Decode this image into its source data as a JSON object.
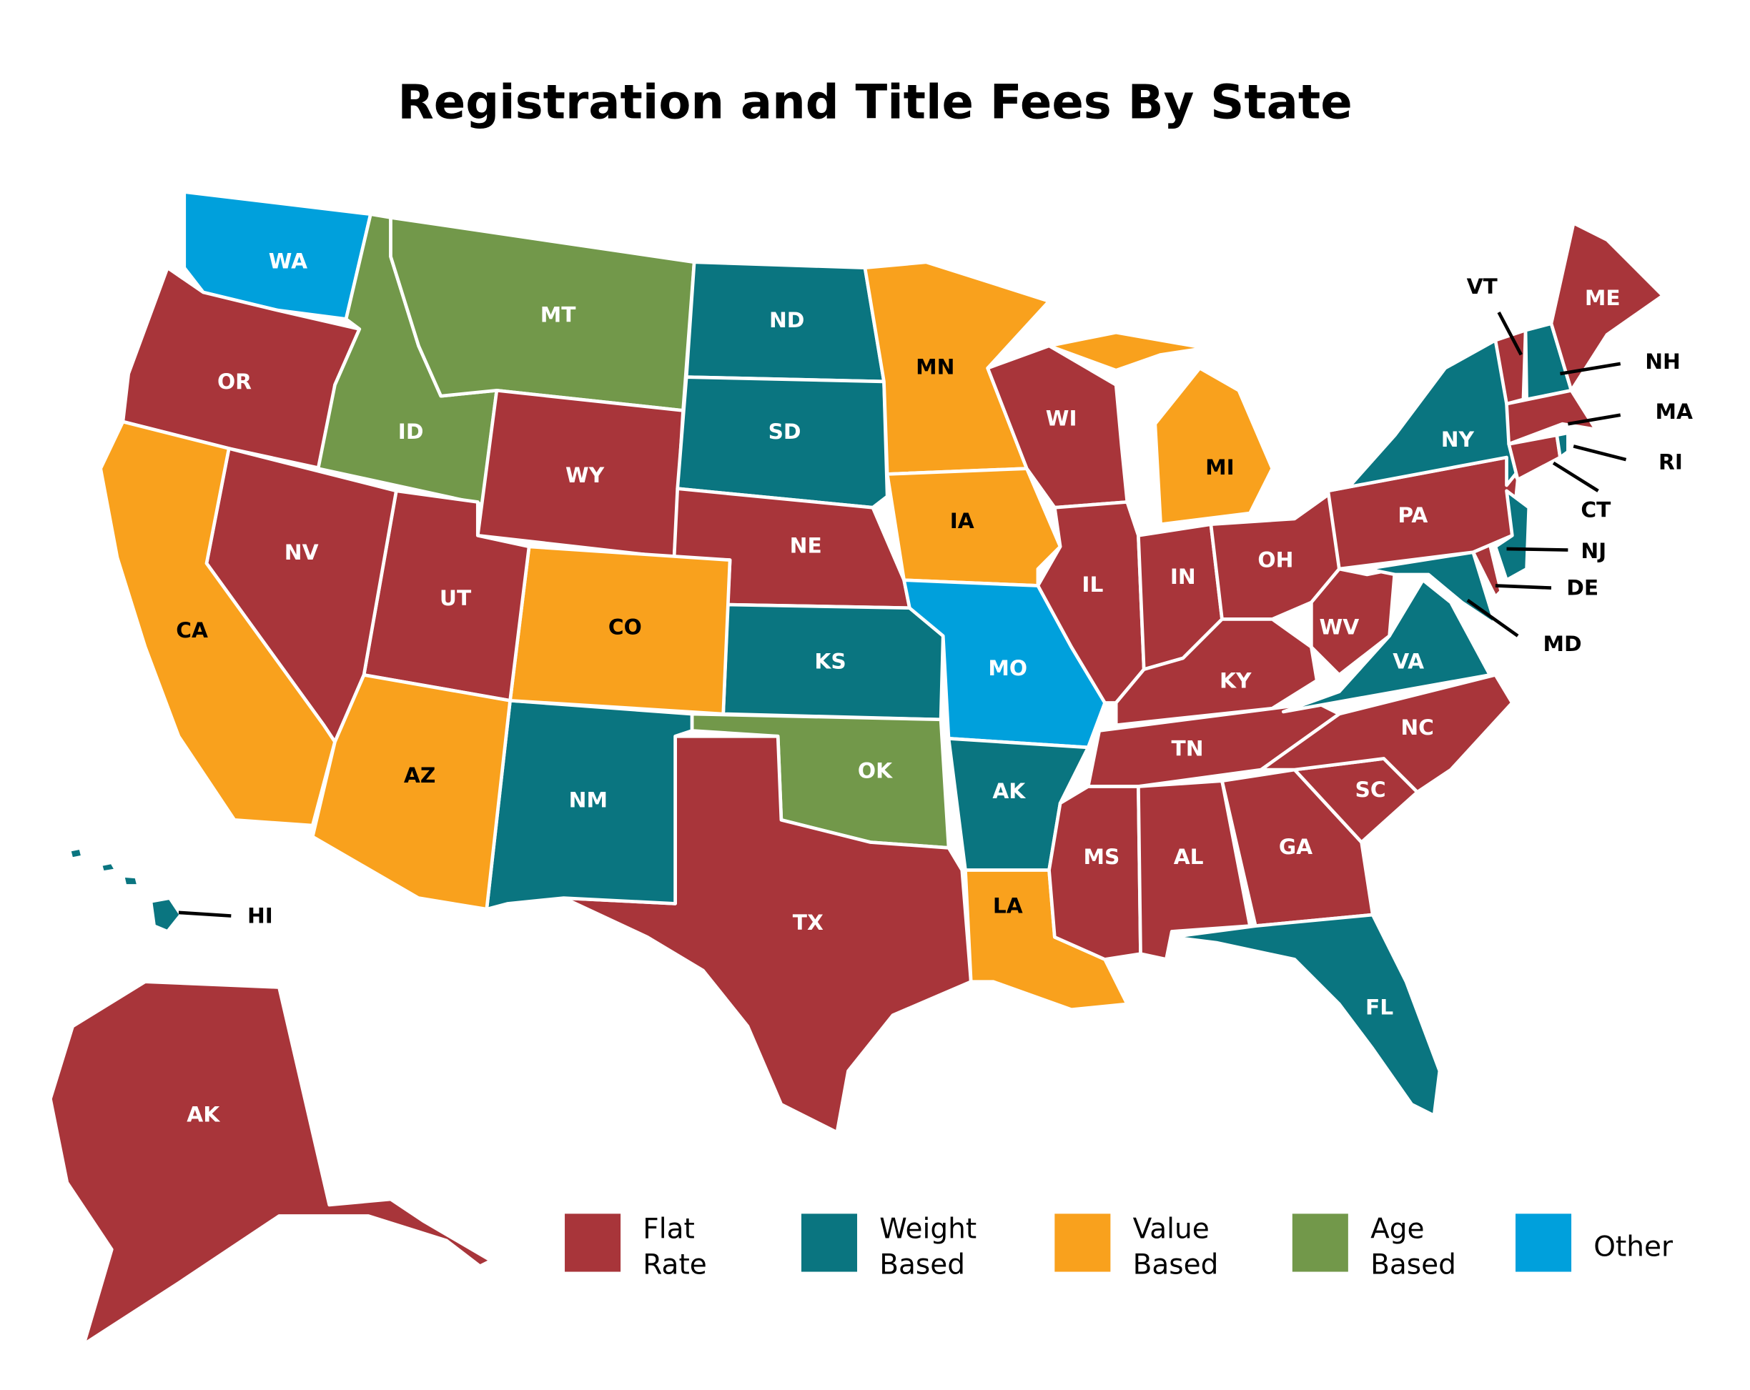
{
  "title": "Registration and Title Fees By State",
  "colors": {
    "flat": "#a8353a",
    "weight": "#0a7580",
    "value": "#f9a11d",
    "age": "#72984a",
    "other": "#00a0dc"
  },
  "legend": [
    {
      "category": "flat",
      "line1": "Flat",
      "line2": "Rate"
    },
    {
      "category": "weight",
      "line1": "Weight",
      "line2": "Based"
    },
    {
      "category": "value",
      "line1": "Value",
      "line2": "Based"
    },
    {
      "category": "age",
      "line1": "Age",
      "line2": "Based"
    },
    {
      "category": "other",
      "line1": "Other",
      "line2": ""
    }
  ],
  "states": [
    {
      "label": "WA",
      "category": "other"
    },
    {
      "label": "OR",
      "category": "flat"
    },
    {
      "label": "ID",
      "category": "age"
    },
    {
      "label": "MT",
      "category": "age"
    },
    {
      "label": "WY",
      "category": "flat"
    },
    {
      "label": "ND",
      "category": "weight"
    },
    {
      "label": "SD",
      "category": "weight"
    },
    {
      "label": "NE",
      "category": "flat"
    },
    {
      "label": "KS",
      "category": "weight"
    },
    {
      "label": "OK",
      "category": "age"
    },
    {
      "label": "TX",
      "category": "flat"
    },
    {
      "label": "NM",
      "category": "weight"
    },
    {
      "label": "CO",
      "category": "value"
    },
    {
      "label": "UT",
      "category": "flat"
    },
    {
      "label": "NV",
      "category": "flat"
    },
    {
      "label": "CA",
      "category": "value"
    },
    {
      "label": "AZ",
      "category": "value"
    },
    {
      "label": "MN",
      "category": "value"
    },
    {
      "label": "IA",
      "category": "value"
    },
    {
      "label": "MO",
      "category": "other"
    },
    {
      "label": "AK",
      "category": "weight"
    },
    {
      "label": "LA",
      "category": "value"
    },
    {
      "label": "WI",
      "category": "flat"
    },
    {
      "label": "IL",
      "category": "flat"
    },
    {
      "label": "MI",
      "category": "value"
    },
    {
      "label": "IN",
      "category": "flat"
    },
    {
      "label": "OH",
      "category": "flat"
    },
    {
      "label": "KY",
      "category": "flat"
    },
    {
      "label": "TN",
      "category": "flat"
    },
    {
      "label": "MS",
      "category": "flat"
    },
    {
      "label": "AL",
      "category": "flat"
    },
    {
      "label": "GA",
      "category": "flat"
    },
    {
      "label": "FL",
      "category": "weight"
    },
    {
      "label": "SC",
      "category": "flat"
    },
    {
      "label": "NC",
      "category": "flat"
    },
    {
      "label": "VA",
      "category": "weight"
    },
    {
      "label": "WV",
      "category": "flat"
    },
    {
      "label": "MD",
      "category": "weight"
    },
    {
      "label": "DE",
      "category": "flat"
    },
    {
      "label": "PA",
      "category": "flat"
    },
    {
      "label": "NJ",
      "category": "weight"
    },
    {
      "label": "NY",
      "category": "weight"
    },
    {
      "label": "VT",
      "category": "flat"
    },
    {
      "label": "NH",
      "category": "weight"
    },
    {
      "label": "ME",
      "category": "flat"
    },
    {
      "label": "MA",
      "category": "flat"
    },
    {
      "label": "CT",
      "category": "flat"
    },
    {
      "label": "RI",
      "category": "weight"
    },
    {
      "label": "HI",
      "category": "weight"
    },
    {
      "label": "AK",
      "category": "flat"
    }
  ]
}
